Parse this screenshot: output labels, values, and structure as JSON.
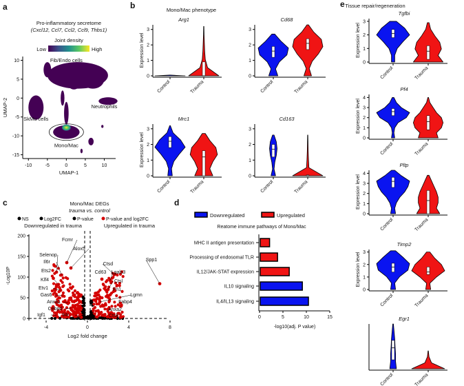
{
  "panel_labels": [
    "a",
    "b",
    "c",
    "d",
    "e"
  ],
  "chart_data": [
    {
      "type": "scatter",
      "panel": "a",
      "title": "Pro-inflammatory secretome",
      "subtitle": "(Cxcl12, Ccl7, Ccl2, Ccl9, Thbs1)",
      "colorbar": {
        "title": "Joint density",
        "low": "Low",
        "high": "High",
        "colors": [
          "#440154",
          "#3b528b",
          "#21908d",
          "#5dc962",
          "#fde725"
        ]
      },
      "xlabel": "UMAP-1",
      "ylabel": "UMAP-2",
      "xticks": [
        -10,
        -5,
        0,
        5,
        10
      ],
      "yticks": [
        10,
        5,
        0,
        -5,
        -10,
        -15
      ],
      "xlim": [
        -11.5,
        13
      ],
      "ylim": [
        -16,
        11
      ],
      "clusters": [
        {
          "label": "Fib/Endo cells",
          "cx": 3,
          "cy": 6,
          "rx": 8,
          "ry": 3.5,
          "lx": 0,
          "ly": 9.5
        },
        {
          "label": "Neutrophils",
          "cx": 11,
          "cy": -0.8,
          "rx": 2.5,
          "ry": 1,
          "lx": 10,
          "ly": -2.7
        },
        {
          "label": "SkMu cells",
          "cx": -8,
          "cy": -2.5,
          "rx": 2,
          "ry": 3.2,
          "lx": -8,
          "ly": -6
        },
        {
          "label": "Mono/Mac",
          "cx": 0,
          "cy": -9,
          "rx": 3.5,
          "ry": 1.8,
          "lx": 0,
          "ly": -13
        }
      ],
      "cluster_color": "#440154",
      "hotspot_color": "#fde725"
    },
    {
      "type": "violin",
      "panel": "b",
      "title": "Mono/Mac phenotype",
      "ylabel": "Expression level",
      "groups": [
        "Control",
        "Trauma"
      ],
      "group_colors": [
        "#0a14f0",
        "#f01414"
      ],
      "plots": [
        {
          "gene": "Arg1",
          "yticks": [
            0,
            1,
            2,
            3
          ],
          "ymax": 3.3,
          "violins": [
            {
              "max": 0.05,
              "median": 0,
              "q1": 0,
              "q3": 0,
              "dens": [
                1,
                0.02
              ]
            },
            {
              "max": 3.2,
              "median": 0,
              "q1": 0,
              "q3": 0.9,
              "dens": [
                1,
                0.25,
                0.1,
                0.06,
                0.04,
                0.02,
                0.01
              ]
            }
          ]
        },
        {
          "gene": "Cd68",
          "yticks": [
            0,
            1,
            2,
            3
          ],
          "ymax": 3.3,
          "violins": [
            {
              "max": 2.7,
              "median": 1.6,
              "q1": 1.2,
              "q3": 1.9,
              "dens": [
                0.3,
                0.15,
                0.4,
                0.9,
                1,
                0.5,
                0.1
              ]
            },
            {
              "max": 3.3,
              "median": 2.1,
              "q1": 1.7,
              "q3": 2.4,
              "dens": [
                0.25,
                0.1,
                0.3,
                0.7,
                1,
                0.9,
                0.4,
                0.05
              ]
            }
          ]
        },
        {
          "gene": "Mrc1",
          "yticks": [
            0,
            1,
            2,
            3
          ],
          "ymax": 3.3,
          "violins": [
            {
              "max": 3.2,
              "median": 2.2,
              "q1": 1.8,
              "q3": 2.5,
              "dens": [
                0.15,
                0.1,
                0.25,
                0.6,
                1,
                0.7,
                0.2,
                0.02
              ]
            },
            {
              "max": 2.7,
              "median": 1.2,
              "q1": 0,
              "q3": 1.6,
              "dens": [
                0.6,
                0.4,
                0.6,
                0.9,
                0.8,
                0.4,
                0.1
              ]
            }
          ]
        },
        {
          "gene": "Cd163",
          "yticks": [
            0,
            1,
            2,
            3
          ],
          "ymax": 3.3,
          "violins": [
            {
              "max": 2.6,
              "median": 1.7,
              "q1": 1.2,
              "q3": 2,
              "dens": [
                0.15,
                0.05,
                0.1,
                0.2,
                0.25,
                0.2,
                0.05
              ]
            },
            {
              "max": 2.6,
              "median": 0,
              "q1": 0,
              "q3": 0.05,
              "dens": [
                1,
                0.08,
                0.05,
                0.03,
                0.02,
                0.01
              ]
            }
          ]
        }
      ]
    },
    {
      "type": "scatter",
      "panel": "c",
      "title": "Mono/Mac DEGs",
      "subtitle": "trauma vs. control",
      "legend": [
        "NS",
        "Log2FC",
        "P-value",
        "P-value and log2FC"
      ],
      "legend_colors": [
        "#000000",
        "#000000",
        "#000000",
        "#d40000"
      ],
      "annotations": [
        "Downregulated in trauma",
        "Upregulated in trauma"
      ],
      "xlabel": "Log2 fold change",
      "ylabel": "-Log10P",
      "xticks": [
        -4,
        0,
        4,
        8
      ],
      "yticks": [
        0,
        50,
        100,
        150,
        200
      ],
      "xlim": [
        -5.5,
        8.5
      ],
      "ylim": [
        0,
        210
      ],
      "labeled_genes": [
        {
          "gene": "Fcmr",
          "x": -2,
          "y": 135
        },
        {
          "gene": "Alox5",
          "x": -1.6,
          "y": 122
        },
        {
          "gene": "Selenop",
          "x": -3,
          "y": 112
        },
        {
          "gene": "Il6r",
          "x": -2.5,
          "y": 105
        },
        {
          "gene": "Ets2",
          "x": -3.3,
          "y": 97
        },
        {
          "gene": "Klf4",
          "x": -2.8,
          "y": 82
        },
        {
          "gene": "Etv1",
          "x": -2.6,
          "y": 68
        },
        {
          "gene": "Gas6",
          "x": -2.4,
          "y": 55
        },
        {
          "gene": "Anxa1",
          "x": -1.9,
          "y": 38
        },
        {
          "gene": "Cebpd",
          "x": -1.6,
          "y": 25
        },
        {
          "gene": "Igf1",
          "x": -3,
          "y": 8
        },
        {
          "gene": "Il4r",
          "x": -0.6,
          "y": 3
        },
        {
          "gene": "Ctsd",
          "x": 2.6,
          "y": 106
        },
        {
          "gene": "Cd63",
          "x": 1.4,
          "y": 95
        },
        {
          "gene": "Lgals3",
          "x": 2.2,
          "y": 92
        },
        {
          "gene": "Spp1",
          "x": 7,
          "y": 84
        },
        {
          "gene": "Ctsl",
          "x": 2,
          "y": 70
        },
        {
          "gene": "Fn1",
          "x": 2.2,
          "y": 57
        },
        {
          "gene": "Lgmn",
          "x": 1.2,
          "y": 40
        },
        {
          "gene": "Fabp4",
          "x": 3.2,
          "y": 30
        },
        {
          "gene": "Anxa2",
          "x": 2.3,
          "y": 14
        },
        {
          "gene": "Ctsk",
          "x": 2.1,
          "y": 5
        }
      ]
    },
    {
      "type": "bar",
      "panel": "d",
      "orientation": "horizontal",
      "title": "Reatome immune pathways of Mono/Mac",
      "legend": [
        {
          "label": "Downregulated",
          "color": "#0a14f0"
        },
        {
          "label": "Upregulated",
          "color": "#f01414"
        }
      ],
      "categories": [
        "MHC II antigen presentation",
        "Processing of endosomal TLR",
        "IL12/JAK-STAT expression",
        "IL10 signaling",
        "IL4/IL13 signaling"
      ],
      "values": [
        2,
        3.7,
        6.2,
        9,
        10.3
      ],
      "direction": [
        "Upregulated",
        "Upregulated",
        "Upregulated",
        "Downregulated",
        "Downregulated"
      ],
      "xlabel": "-log10(adj. P value)",
      "xticks": [
        0,
        5,
        10,
        15
      ],
      "xlim": [
        0,
        15
      ]
    },
    {
      "type": "violin",
      "panel": "e",
      "title": "Tissue repair/regeneration",
      "ylabel": "Expression level",
      "groups": [
        "Control",
        "Trauma"
      ],
      "group_colors": [
        "#0a14f0",
        "#f01414"
      ],
      "plots": [
        {
          "gene": "Tgfbi",
          "yticks": [
            0,
            1,
            2,
            3
          ],
          "ymax": 3.2,
          "violins": [
            {
              "max": 3,
              "median": 2.1,
              "q1": 1.8,
              "q3": 2.4,
              "dens": [
                0.1,
                0.1,
                0.25,
                0.6,
                1,
                0.7,
                0.2
              ]
            },
            {
              "max": 2.9,
              "median": 0.8,
              "q1": 0.2,
              "q3": 1.2,
              "dens": [
                0.9,
                0.6,
                0.8,
                0.7,
                0.4,
                0.15,
                0.05
              ]
            }
          ]
        },
        {
          "gene": "Pf4",
          "yticks": [
            0,
            1,
            2,
            3,
            4
          ],
          "ymax": 4.3,
          "violins": [
            {
              "max": 4,
              "median": 2.6,
              "q1": 2.2,
              "q3": 2.9,
              "dens": [
                0.1,
                0.05,
                0.1,
                0.3,
                0.8,
                1,
                0.5,
                0.2,
                0.05
              ]
            },
            {
              "max": 4,
              "median": 1.6,
              "q1": 0.8,
              "q3": 2.2,
              "dens": [
                0.6,
                0.5,
                0.8,
                0.9,
                0.8,
                0.5,
                0.3,
                0.1,
                0.02
              ]
            }
          ]
        },
        {
          "gene": "Pltp",
          "yticks": [
            0,
            1,
            2,
            3,
            4
          ],
          "ymax": 4.3,
          "violins": [
            {
              "max": 4.3,
              "median": 3.2,
              "q1": 2.6,
              "q3": 3.6,
              "dens": [
                0.15,
                0.1,
                0.2,
                0.4,
                0.7,
                0.9,
                1,
                0.5,
                0.1
              ]
            },
            {
              "max": 3.8,
              "median": 1.3,
              "q1": 0,
              "q3": 2.3,
              "dens": [
                0.7,
                0.5,
                0.6,
                0.6,
                0.5,
                0.35,
                0.2,
                0.05
              ]
            }
          ]
        },
        {
          "gene": "Timp2",
          "yticks": [
            0,
            1,
            2,
            3
          ],
          "ymax": 3.2,
          "violins": [
            {
              "max": 3.1,
              "median": 1.8,
              "q1": 1.4,
              "q3": 2.1,
              "dens": [
                0.15,
                0.1,
                0.4,
                0.9,
                1,
                0.6,
                0.15
              ]
            },
            {
              "max": 3,
              "median": 1.4,
              "q1": 1.2,
              "q3": 1.8,
              "dens": [
                0.15,
                0.1,
                0.5,
                1,
                0.8,
                0.4,
                0.1
              ]
            }
          ]
        },
        {
          "gene": "Egr1",
          "yticks": [],
          "ymax": 3,
          "violins": [
            {
              "max": 3,
              "median": 1.4,
              "q1": 0.6,
              "q3": 1.9,
              "dens": [
                0.2,
                0.15,
                0.15,
                0.12,
                0.1,
                0.06,
                0.02
              ]
            },
            {
              "max": 1.2,
              "median": 0,
              "q1": 0,
              "q3": 0.02,
              "dens": [
                1,
                0.2,
                0.05,
                0.01
              ]
            }
          ]
        }
      ]
    }
  ]
}
